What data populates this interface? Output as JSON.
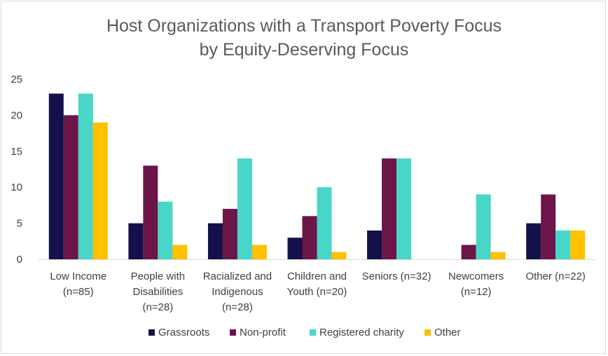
{
  "chart_data": {
    "type": "bar",
    "title": [
      "Host Organizations with a Transport Poverty Focus",
      "by Equity-Deserving Focus"
    ],
    "categories": [
      [
        "Low Income",
        "(n=85)"
      ],
      [
        "People with",
        "Disabilities",
        "(n=28)"
      ],
      [
        "Racialized and",
        "Indigenous",
        "(n=28)"
      ],
      [
        "Children and",
        "Youth (n=20)"
      ],
      [
        "Seniors (n=32)"
      ],
      [
        "Newcomers",
        "(n=12)"
      ],
      [
        "Other (n=22)"
      ]
    ],
    "series": [
      {
        "name": "Grassroots",
        "color": "#14104a",
        "values": [
          23,
          5,
          5,
          3,
          4,
          0,
          5
        ]
      },
      {
        "name": "Non-profit",
        "color": "#6b1548",
        "values": [
          20,
          13,
          7,
          6,
          14,
          2,
          9
        ]
      },
      {
        "name": "Registered charity",
        "color": "#48d6c8",
        "values": [
          23,
          8,
          14,
          10,
          14,
          9,
          4
        ]
      },
      {
        "name": "Other",
        "color": "#ffc000",
        "values": [
          19,
          2,
          2,
          1,
          0,
          1,
          4
        ]
      }
    ],
    "ylim": [
      0,
      25
    ],
    "yticks": [
      0,
      5,
      10,
      15,
      20,
      25
    ],
    "grid": false,
    "legend": "bottom"
  }
}
